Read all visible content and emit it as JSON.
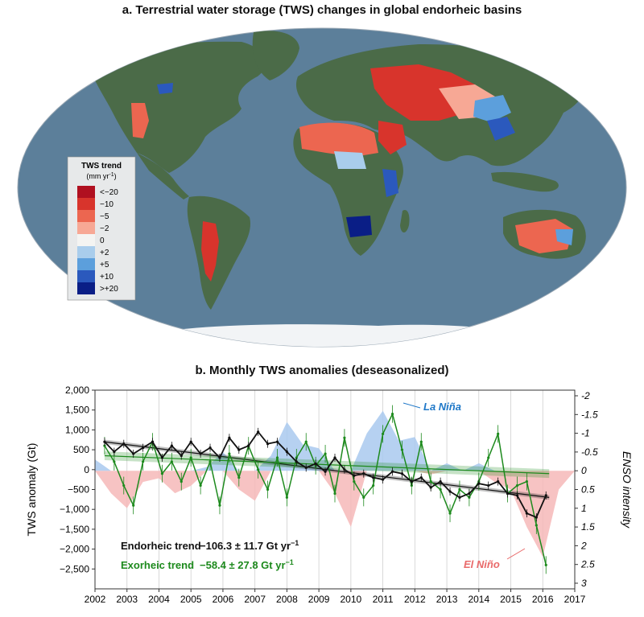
{
  "panel_a": {
    "title": "a. Terrestrial water storage (TWS) changes in global endorheic basins",
    "legend": {
      "title": "TWS trend",
      "unit_prefix": "(mm yr",
      "unit_sup": "-1",
      "unit_suffix": ")",
      "classes": [
        {
          "label": "<−20",
          "color": "#b01020"
        },
        {
          "label": "−10",
          "color": "#d8342c"
        },
        {
          "label": "−5",
          "color": "#ec6650"
        },
        {
          "label": "−2",
          "color": "#f7a895"
        },
        {
          "label": "0",
          "color": "#f4f4f2"
        },
        {
          "label": "+2",
          "color": "#a9cdec"
        },
        {
          "label": "+5",
          "color": "#5c9fdc"
        },
        {
          "label": "+10",
          "color": "#2b59bd"
        },
        {
          "label": ">+20",
          "color": "#0a1e86"
        }
      ]
    },
    "colors": {
      "ocean": "#5c7f9a",
      "land": "#4b6b48",
      "ice": "#f2f4f6"
    }
  },
  "chart_data": {
    "type": "line",
    "title": "b. Monthly TWS anomalies (deseasonalized)",
    "ylabel": "TWS anomaly (Gt)",
    "y2label": "ENSO intensity",
    "xlim": [
      2002,
      2017
    ],
    "ylim": [
      -3000,
      2000
    ],
    "y2lim": [
      -2.15,
      3.15
    ],
    "y2_inverted": true,
    "grid": "vertical at each year",
    "x_ticks": [
      "2002",
      "2003",
      "2004",
      "2005",
      "2006",
      "2007",
      "2008",
      "2009",
      "2010",
      "2011",
      "2012",
      "2013",
      "2014",
      "2015",
      "2016",
      "2017"
    ],
    "y_ticks": [
      "2,000",
      "1,500",
      "1,000",
      "500",
      "0",
      "−500",
      "−1,000",
      "−1,500",
      "−2,000",
      "−2,500"
    ],
    "y_tick_values": [
      2000,
      1500,
      1000,
      500,
      0,
      -500,
      -1000,
      -1500,
      -2000,
      -2500
    ],
    "y2_ticks": [
      "-2",
      "-1.5",
      "-1",
      "-0.5",
      "0",
      "0.5",
      "1",
      "1.5",
      "2",
      "2.5",
      "3"
    ],
    "y2_tick_values": [
      -2,
      -1.5,
      -1,
      -0.5,
      0,
      0.5,
      1,
      1.5,
      2,
      2.5,
      3
    ],
    "series": [
      {
        "name": "Endorheic",
        "color": "#111111",
        "x": [
          2002.3,
          2002.6,
          2002.9,
          2003.2,
          2003.5,
          2003.8,
          2004.1,
          2004.4,
          2004.7,
          2005.0,
          2005.3,
          2005.6,
          2005.9,
          2006.2,
          2006.5,
          2006.8,
          2007.1,
          2007.4,
          2007.7,
          2008.0,
          2008.3,
          2008.6,
          2008.9,
          2009.2,
          2009.5,
          2009.8,
          2010.1,
          2010.4,
          2010.7,
          2011.0,
          2011.3,
          2011.6,
          2011.9,
          2012.2,
          2012.5,
          2012.8,
          2013.1,
          2013.4,
          2013.7,
          2014.0,
          2014.3,
          2014.6,
          2014.9,
          2015.2,
          2015.5,
          2015.8,
          2016.1
        ],
        "y": [
          700,
          450,
          650,
          400,
          550,
          700,
          300,
          600,
          350,
          700,
          400,
          550,
          300,
          800,
          500,
          600,
          950,
          650,
          700,
          450,
          200,
          50,
          150,
          -50,
          300,
          0,
          -150,
          -100,
          -200,
          -250,
          -50,
          -100,
          -300,
          -200,
          -450,
          -300,
          -550,
          -700,
          -600,
          -350,
          -400,
          -300,
          -600,
          -650,
          -1100,
          -1200,
          -650
        ]
      },
      {
        "name": "Exorheic",
        "color": "#1d8a1d",
        "x": [
          2002.3,
          2002.6,
          2002.9,
          2003.2,
          2003.5,
          2003.8,
          2004.1,
          2004.4,
          2004.7,
          2005.0,
          2005.3,
          2005.6,
          2005.9,
          2006.2,
          2006.5,
          2006.8,
          2007.1,
          2007.4,
          2007.7,
          2008.0,
          2008.3,
          2008.6,
          2008.9,
          2009.2,
          2009.5,
          2009.8,
          2010.1,
          2010.4,
          2010.7,
          2011.0,
          2011.3,
          2011.6,
          2011.9,
          2012.2,
          2012.5,
          2012.8,
          2013.1,
          2013.4,
          2013.7,
          2014.0,
          2014.3,
          2014.6,
          2014.9,
          2015.2,
          2015.5,
          2015.8,
          2016.1
        ],
        "y": [
          600,
          200,
          -400,
          -900,
          200,
          700,
          -100,
          200,
          -300,
          300,
          -400,
          200,
          -900,
          400,
          -200,
          600,
          0,
          -500,
          300,
          -700,
          300,
          700,
          100,
          400,
          -600,
          800,
          -300,
          -700,
          -400,
          900,
          1400,
          500,
          -400,
          700,
          -300,
          -500,
          -1100,
          -500,
          -700,
          -300,
          300,
          900,
          -600,
          -400,
          -300,
          -1400,
          -2400
        ]
      },
      {
        "name": "ENSO",
        "color": "#f3b7b9",
        "x": [
          2002.0,
          2002.5,
          2003.0,
          2003.5,
          2004.0,
          2004.5,
          2005.0,
          2005.5,
          2006.0,
          2006.5,
          2007.0,
          2007.5,
          2008.0,
          2008.5,
          2009.0,
          2009.5,
          2010.0,
          2010.5,
          2011.0,
          2011.5,
          2012.0,
          2012.5,
          2013.0,
          2013.5,
          2014.0,
          2014.5,
          2015.0,
          2015.5,
          2016.0,
          2016.5,
          2017.0
        ],
        "y": [
          -0.3,
          0.6,
          1.0,
          0.3,
          0.2,
          0.6,
          0.4,
          -0.1,
          -0.5,
          0.5,
          0.8,
          -0.4,
          -1.3,
          -0.7,
          -0.6,
          0.6,
          1.5,
          -1.0,
          -1.6,
          -0.8,
          -0.9,
          0.1,
          -0.2,
          0.0,
          -0.2,
          0.3,
          0.5,
          1.5,
          2.3,
          0.5,
          0.0
        ]
      }
    ],
    "trends": [
      {
        "name": "Endorheic trend",
        "value": "−106.3 ± 11.7 Gt yr",
        "sup": "−1",
        "start": 700,
        "end": -700,
        "color": "#111111"
      },
      {
        "name": "Exorheic trend",
        "value": "−58.4 ± 27.8 Gt yr",
        "sup": "−1",
        "start": 350,
        "end": -100,
        "color": "#1d8a1d"
      }
    ],
    "annotations": [
      {
        "text": "La Niña",
        "color": "#1f78c8"
      },
      {
        "text": "El Niño",
        "color": "#e96a6a"
      }
    ],
    "enso_colors": {
      "la_nina": "#a9c9ee",
      "el_nino": "#f6b8b8"
    }
  }
}
